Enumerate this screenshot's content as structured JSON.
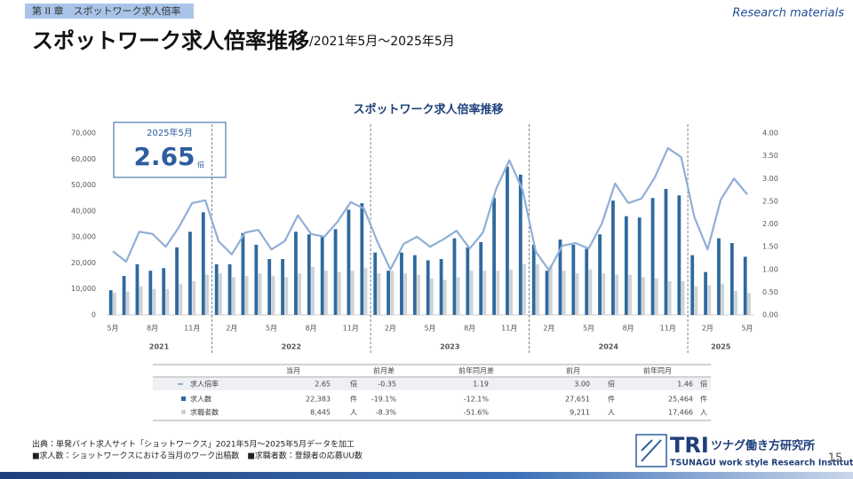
{
  "header": {
    "chapter": "第 II 章　スポットワーク求人倍率",
    "tag": "Research materials",
    "title": "スポットワーク求人倍率推移",
    "subtitle": "/2021年5月～2025年5月"
  },
  "chart_data": {
    "type": "bar-line",
    "title": "スポットワーク求人倍率推移",
    "categories": [
      "5月",
      null,
      null,
      "8月",
      null,
      null,
      "11月",
      null,
      null,
      "2月",
      null,
      null,
      "5月",
      null,
      null,
      "8月",
      null,
      null,
      "11月",
      null,
      null,
      "2月",
      null,
      null,
      "5月",
      null,
      null,
      "8月",
      null,
      null,
      "11月",
      null,
      null,
      "2月",
      null,
      null,
      "5月",
      null,
      null,
      "8月",
      null,
      null,
      "11月",
      null,
      null,
      "2月",
      null,
      null,
      "5月"
    ],
    "year_labels": [
      "2021",
      "2022",
      "2023",
      "2024",
      "2025"
    ],
    "series": [
      {
        "name": "求人数",
        "color": "#2e6a9e",
        "values": [
          9500,
          15000,
          19500,
          17000,
          18000,
          26000,
          32000,
          39500,
          19500,
          19500,
          31500,
          27000,
          21500,
          21500,
          32000,
          31000,
          30000,
          33000,
          40500,
          43000,
          24000,
          17000,
          24000,
          23000,
          21000,
          21500,
          29500,
          26000,
          28000,
          45000,
          57000,
          54000,
          27000,
          17000,
          29000,
          27000,
          25464,
          31000,
          44000,
          38000,
          37500,
          45000,
          48500,
          46000,
          23000,
          16500,
          29500,
          27651,
          22383
        ]
      },
      {
        "name": "求職者数",
        "color": "#cfd2d6",
        "values": [
          8500,
          9000,
          11000,
          10000,
          10000,
          12000,
          13000,
          15500,
          16000,
          14500,
          15000,
          16000,
          15000,
          14500,
          16000,
          18500,
          17000,
          16500,
          17000,
          18000,
          16000,
          17000,
          16000,
          15500,
          14000,
          13500,
          14500,
          17000,
          17000,
          17000,
          17500,
          19500,
          19500,
          19000,
          17000,
          16000,
          17466,
          16000,
          15500,
          15500,
          14500,
          14000,
          13000,
          13000,
          11000,
          11500,
          12000,
          9211,
          8445
        ]
      },
      {
        "name": "求人倍率",
        "color": "#8fafd6",
        "axis": "y2",
        "values": [
          1.4,
          1.17,
          1.83,
          1.78,
          1.5,
          1.93,
          2.46,
          2.52,
          1.62,
          1.33,
          1.81,
          1.87,
          1.44,
          1.62,
          2.19,
          1.78,
          1.72,
          2.05,
          2.48,
          2.34,
          1.62,
          1.0,
          1.56,
          1.72,
          1.5,
          1.66,
          1.85,
          1.46,
          1.81,
          2.77,
          3.4,
          2.75,
          1.39,
          0.98,
          1.52,
          1.58,
          1.46,
          2.01,
          2.89,
          2.46,
          2.56,
          3.02,
          3.67,
          3.47,
          2.15,
          1.44,
          2.54,
          3.0,
          2.65
        ]
      }
    ],
    "ylim": [
      0,
      70000
    ],
    "yticks": [
      0,
      {
        "value": 10000,
        "label": "10,000"
      },
      {
        "value": 20000,
        "label": "20,000"
      },
      {
        "value": 30000,
        "label": "30,000"
      },
      {
        "value": 40000,
        "label": "40,000"
      },
      {
        "value": 50000,
        "label": "50,000"
      },
      {
        "value": 60000,
        "label": "60,000"
      },
      {
        "value": 70000,
        "label": "70,000"
      }
    ],
    "y2lim": [
      0,
      4
    ],
    "y2ticks": [
      {
        "value": 0,
        "label": "0.00"
      },
      {
        "value": 0.5,
        "label": "0.50"
      },
      {
        "value": 1,
        "label": "1.00"
      },
      {
        "value": 1.5,
        "label": "1.50"
      },
      {
        "value": 2,
        "label": "2.00"
      },
      {
        "value": 2.5,
        "label": "2.50"
      },
      {
        "value": 3,
        "label": "3.00"
      },
      {
        "value": 3.5,
        "label": "3.50"
      },
      {
        "value": 4,
        "label": "4.00"
      }
    ],
    "grid": false,
    "callout": {
      "period": "2025年5月",
      "value": "2.65",
      "unit": "倍"
    }
  },
  "table": {
    "header": [
      "当月",
      "前月差",
      "前年同月差",
      "前月",
      "前年同月"
    ],
    "rows": [
      [
        "求人倍率",
        "2.65",
        "倍",
        "-0.35",
        "1.19",
        "3.00",
        "倍",
        "1.46",
        "倍"
      ],
      [
        "求人数",
        "22,383",
        "件",
        "-19.1%",
        "-12.1%",
        "27,651",
        "件",
        "25,464",
        "件"
      ],
      [
        "求職者数",
        "8,445",
        "人",
        "-8.3%",
        "-51.6%",
        "9,211",
        "人",
        "17,466",
        "人"
      ]
    ]
  },
  "footer": {
    "source": "出典：単発バイト求人サイト「ショットワークス」2021年5月～2025年5月データを加工",
    "note": "■求人数：ショットワークスにおける当月のワーク出稿数　■求職者数：登録者の応募UU数",
    "logo": "TRI",
    "logo_jp": "ツナグ働き方研究所",
    "logo_en": "TSUNAGU work style Research Institute",
    "page": "15"
  }
}
